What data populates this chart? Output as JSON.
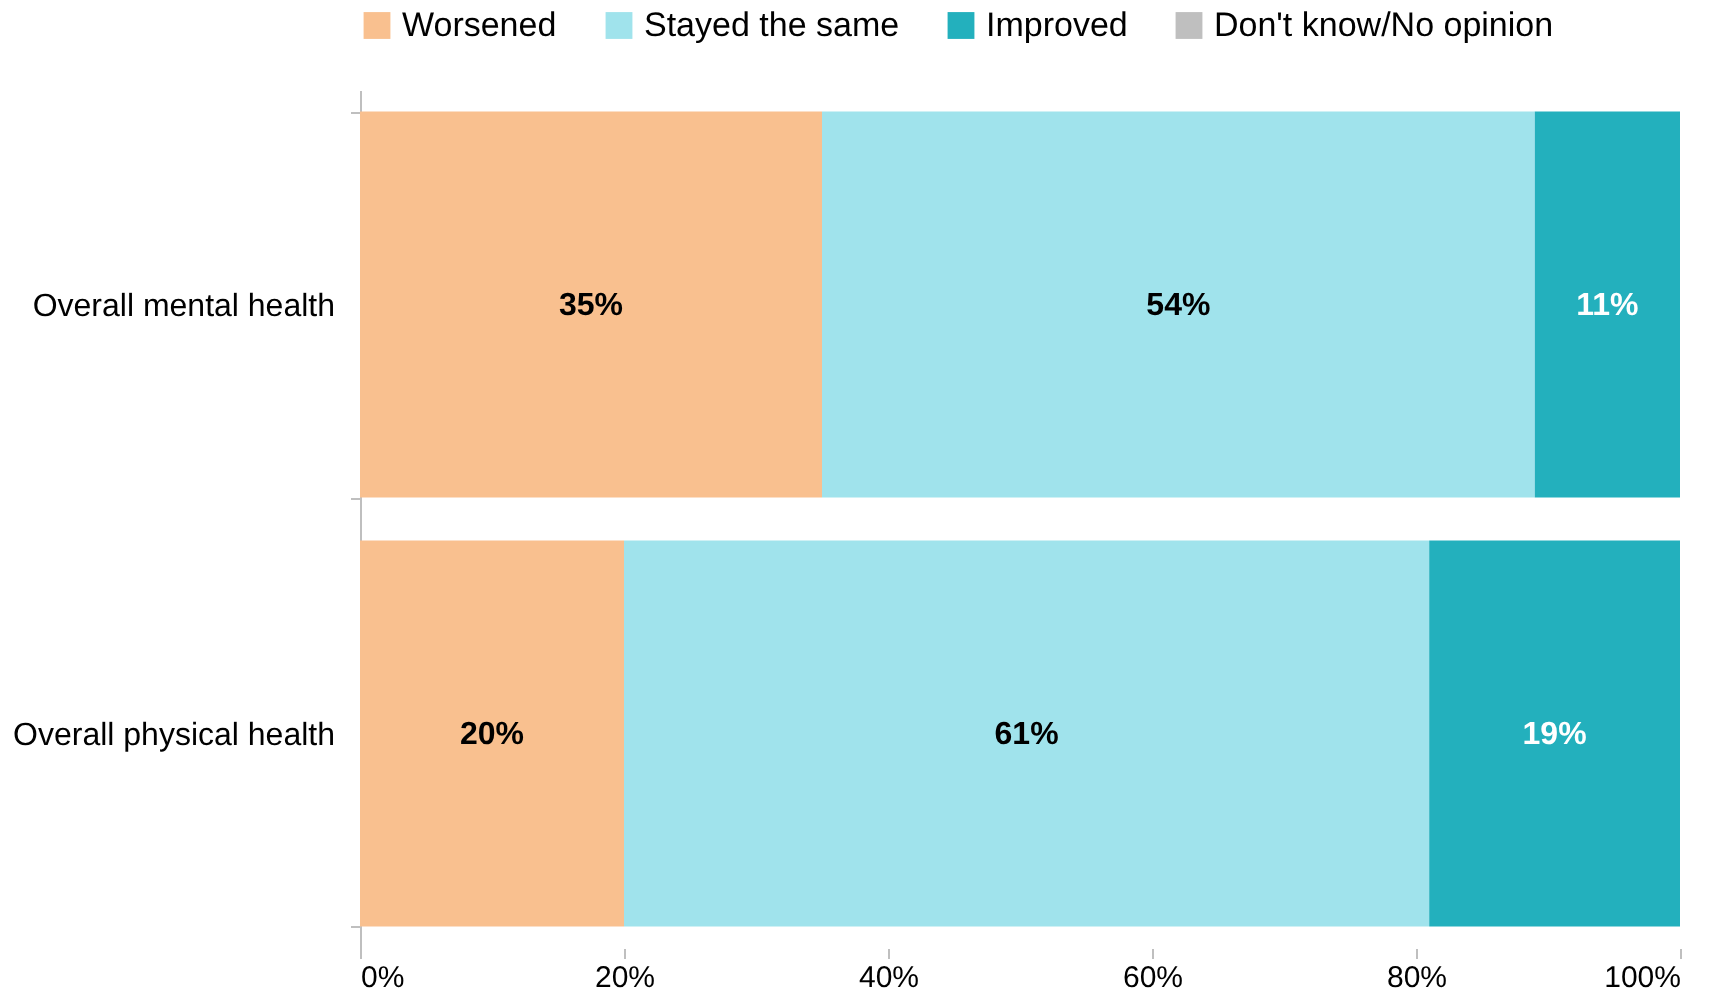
{
  "chart_data": {
    "type": "bar",
    "orientation": "horizontal",
    "stacked": true,
    "categories": [
      "Overall mental health",
      "Overall physical health"
    ],
    "series": [
      {
        "name": "Worsened",
        "color": "#f9c08f",
        "values": [
          35,
          20
        ],
        "value_labels": [
          "35%",
          "20%"
        ]
      },
      {
        "name": "Stayed the same",
        "color": "#a0e3ec",
        "values": [
          54,
          61
        ],
        "value_labels": [
          "54%",
          "61%"
        ]
      },
      {
        "name": "Improved",
        "color": "#23b0bd",
        "values": [
          11,
          19
        ],
        "value_labels": [
          "11%",
          "19%"
        ]
      },
      {
        "name": "Don't know/No opinion",
        "color": "#bfbfbf",
        "values": [
          0,
          0
        ],
        "value_labels": [
          null,
          null
        ]
      }
    ],
    "xlim": [
      0,
      100
    ],
    "xticks": [
      {
        "value": 0,
        "label": "0%"
      },
      {
        "value": 20,
        "label": "20%"
      },
      {
        "value": 40,
        "label": "40%"
      },
      {
        "value": 60,
        "label": "60%"
      },
      {
        "value": 80,
        "label": "80%"
      },
      {
        "value": 100,
        "label": "100%"
      }
    ],
    "legend": "top",
    "grid": false
  }
}
